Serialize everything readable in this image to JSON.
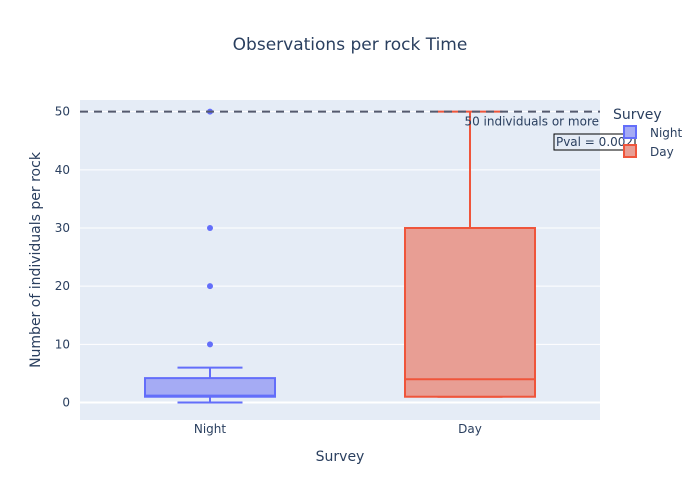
{
  "chart_data": {
    "type": "box",
    "title": "Observations per rock Time",
    "xlabel": "Survey",
    "ylabel": "Number of individuals per rock",
    "categories": [
      "Night",
      "Day"
    ],
    "ylim": [
      -3,
      52
    ],
    "yticks": [
      0,
      10,
      20,
      30,
      40,
      50
    ],
    "grid": true,
    "legend": {
      "title": "Survey",
      "position": "top-right",
      "entries": [
        "Night",
        "Day"
      ]
    },
    "series": [
      {
        "name": "Night",
        "color": "#636efa",
        "fill": "#a5abf4",
        "min": 0,
        "q1": 1,
        "median": 1.2,
        "q3": 4.2,
        "max": 6,
        "outliers": [
          10,
          20,
          30,
          50
        ]
      },
      {
        "name": "Day",
        "color": "#ef553b",
        "fill": "#e89e94",
        "min": 1,
        "q1": 1,
        "median": 4,
        "q3": 30,
        "max": 50,
        "outliers": []
      }
    ],
    "annotations": [
      {
        "type": "hline",
        "y": 50,
        "dash": true,
        "color": "#555a6e",
        "label": "50 individuals or more"
      },
      {
        "type": "text",
        "text": "Pval = 0.002",
        "boxed": true
      }
    ]
  }
}
